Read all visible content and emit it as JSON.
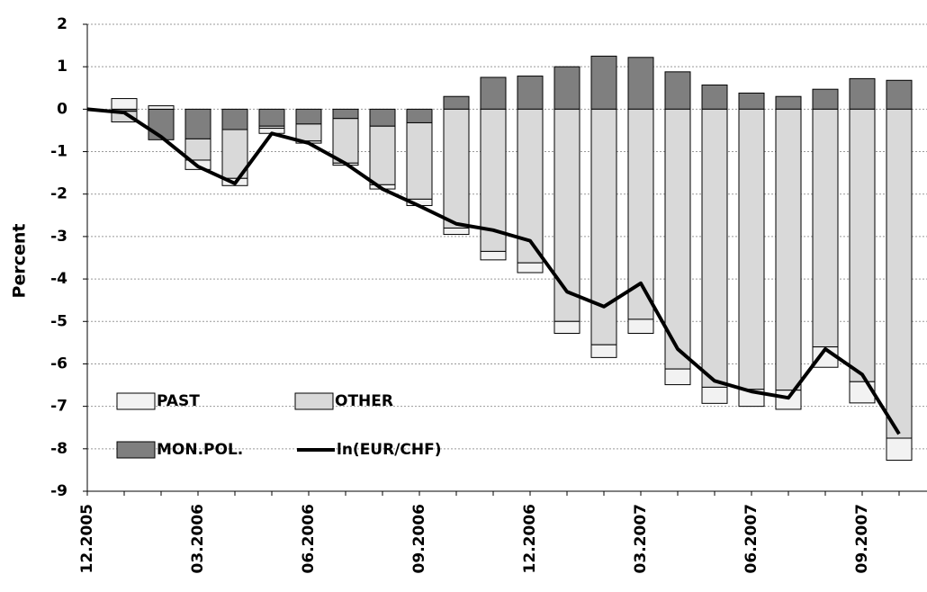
{
  "chart_data": {
    "type": "stacked-bar-line",
    "y_label": "Percent",
    "categories": [
      "12.2005",
      null,
      null,
      "03.2006",
      null,
      null,
      "06.2006",
      null,
      null,
      "09.2006",
      null,
      null,
      "12.2006",
      null,
      null,
      "03.2007",
      null,
      null,
      "06.2007",
      null,
      null,
      "09.2007",
      null
    ],
    "series": [
      {
        "name": "MON.POL.",
        "kind": "bar",
        "color": "#7f7f7f",
        "values": [
          null,
          -0.05,
          -0.72,
          -0.7,
          -0.48,
          -0.4,
          -0.35,
          -0.22,
          -0.4,
          -0.32,
          0.3,
          0.75,
          0.78,
          1.0,
          1.25,
          1.22,
          0.88,
          0.57,
          0.38,
          0.3,
          0.47,
          0.72,
          0.68
        ]
      },
      {
        "name": "OTHER",
        "kind": "bar",
        "color": "#d9d9d9",
        "values": [
          null,
          -0.25,
          0,
          -0.5,
          -1.15,
          -0.05,
          -0.4,
          -1.05,
          -1.38,
          -1.8,
          -2.8,
          -3.35,
          -3.62,
          -5.0,
          -5.55,
          -4.95,
          -6.12,
          -6.55,
          -6.6,
          -6.62,
          -5.6,
          -6.42,
          -7.75
        ]
      },
      {
        "name": "PAST",
        "kind": "bar",
        "color": "#f2f2f2",
        "values": [
          null,
          0.25,
          0.08,
          -0.22,
          -0.17,
          -0.12,
          -0.05,
          -0.05,
          -0.1,
          -0.15,
          -0.15,
          -0.2,
          -0.23,
          -0.28,
          -0.3,
          -0.33,
          -0.37,
          -0.38,
          -0.4,
          -0.45,
          -0.48,
          -0.5,
          -0.52
        ]
      },
      {
        "name": "ln(EUR/CHF)",
        "kind": "line",
        "color": "#000000",
        "values": [
          0,
          -0.08,
          -0.65,
          -1.35,
          -1.75,
          -0.57,
          -0.8,
          -1.28,
          -1.88,
          -2.28,
          -2.7,
          -2.85,
          -3.1,
          -4.3,
          -4.65,
          -4.1,
          -5.65,
          -6.4,
          -6.65,
          -6.8,
          -5.65,
          -6.25,
          -7.65
        ]
      }
    ],
    "ylim": [
      -9,
      2
    ],
    "yticks": [
      -9,
      -8,
      -7,
      -6,
      -5,
      -4,
      -3,
      -2,
      -1,
      0,
      1,
      2
    ],
    "grid": true,
    "legend": "lower left"
  }
}
